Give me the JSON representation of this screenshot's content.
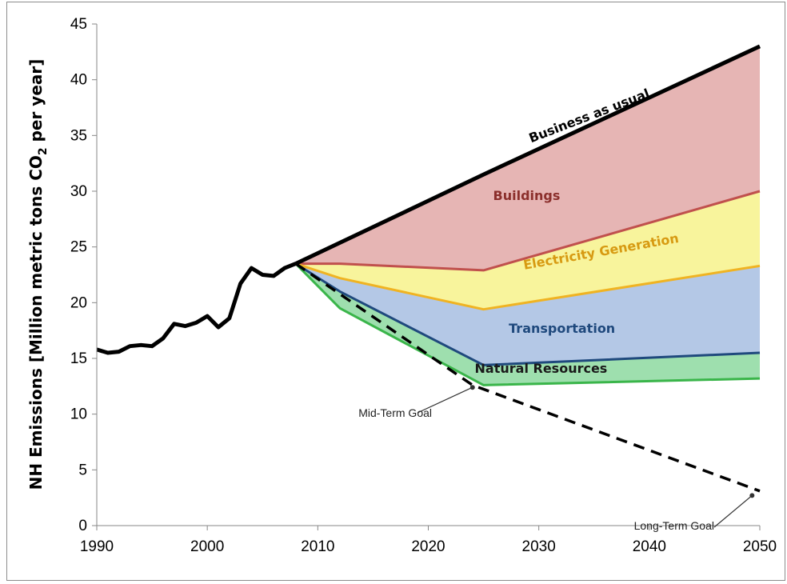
{
  "chart_data": {
    "type": "area",
    "title": "",
    "xlabel": "",
    "ylabel_main": "NH Emissions [Million metric tons CO",
    "ylabel_sub": "2",
    "ylabel_end": " per year]",
    "xlim": [
      1990,
      2050
    ],
    "ylim": [
      0,
      45
    ],
    "xticks": [
      1990,
      2000,
      2010,
      2020,
      2030,
      2040,
      2050
    ],
    "yticks": [
      0,
      5,
      10,
      15,
      20,
      25,
      30,
      35,
      40,
      45
    ],
    "grid": false,
    "historical": {
      "x": [
        1990,
        1991,
        1992,
        1993,
        1994,
        1995,
        1996,
        1997,
        1998,
        1999,
        2000,
        2001,
        2002,
        2003,
        2004,
        2005,
        2006,
        2007,
        2008
      ],
      "y": [
        15.8,
        15.5,
        15.6,
        16.1,
        16.2,
        16.1,
        16.8,
        18.1,
        17.9,
        18.2,
        18.8,
        17.8,
        18.6,
        21.7,
        23.1,
        22.5,
        22.4,
        23.1,
        23.5
      ]
    },
    "business_as_usual": {
      "name": "Business as usual",
      "x": [
        2008,
        2018,
        2025,
        2050
      ],
      "y": [
        23.5,
        28.2,
        31.5,
        43.0
      ],
      "color": "#000000"
    },
    "wedges": [
      {
        "name": "Buildings",
        "color": "#c0504d",
        "fill": "#e6b5b4",
        "x": [
          2008,
          2012,
          2025,
          2050
        ],
        "y": [
          23.5,
          23.5,
          22.9,
          30.0
        ]
      },
      {
        "name": "Electricity Generation",
        "color": "#f0b322",
        "fill": "#f8f49c",
        "x": [
          2008,
          2012,
          2025,
          2050
        ],
        "y": [
          23.5,
          22.2,
          19.4,
          23.3
        ]
      },
      {
        "name": "Transportation",
        "color": "#1f497d",
        "fill": "#b4c8e6",
        "x": [
          2008,
          2012,
          2025,
          2050
        ],
        "y": [
          23.5,
          21.0,
          14.4,
          15.5
        ]
      },
      {
        "name": "Natural Resources",
        "color": "#3ab54a",
        "fill": "#9edfae",
        "x": [
          2008,
          2012,
          2025,
          2050
        ],
        "y": [
          23.5,
          19.5,
          12.6,
          13.2
        ]
      }
    ],
    "goal_line": {
      "style": "dashed",
      "x": [
        2008,
        2024,
        2050
      ],
      "y": [
        23.5,
        12.6,
        3.1
      ]
    },
    "annotations": {
      "mid_term": {
        "text": "Mid-Term Goal",
        "x": 2024,
        "y": 12.4
      },
      "long_term": {
        "text": "Long-Term Goal",
        "x": 2049.3,
        "y": 2.7
      }
    }
  }
}
